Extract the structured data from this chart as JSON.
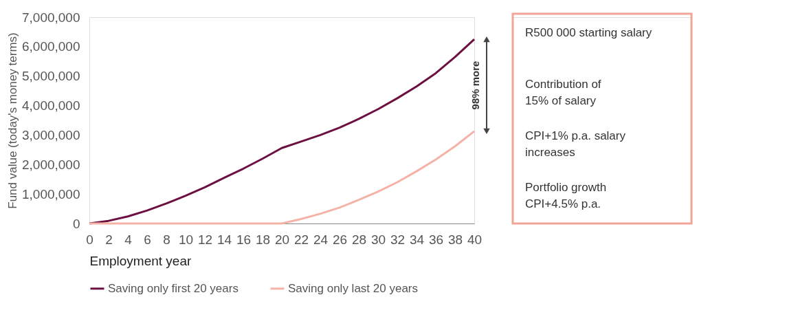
{
  "chart_data": {
    "type": "line",
    "xlabel": "Employment year",
    "ylabel": "Fund value (today's money terms)",
    "xlim": [
      0,
      40
    ],
    "xticks": [
      0,
      2,
      4,
      6,
      8,
      10,
      12,
      14,
      16,
      18,
      20,
      22,
      24,
      26,
      28,
      30,
      32,
      34,
      36,
      38,
      40
    ],
    "ylim": [
      0,
      7000000
    ],
    "yticks": [
      {
        "value": 0,
        "label": "0"
      },
      {
        "value": 1000000,
        "label": "1,000,000"
      },
      {
        "value": 2000000,
        "label": "2,000,000"
      },
      {
        "value": 3000000,
        "label": "3,000,000"
      },
      {
        "value": 4000000,
        "label": "4,000,000"
      },
      {
        "value": 5000000,
        "label": "5,000,000"
      },
      {
        "value": 6000000,
        "label": "6,000,000"
      },
      {
        "value": 7000000,
        "label": "7,000,000"
      }
    ],
    "grid": false,
    "legend": "bottom",
    "marker": "none",
    "line_style": "solid",
    "series": [
      {
        "name": "Saving only first 20 years",
        "color": "#6b1040",
        "x": [
          0,
          2,
          4,
          6,
          8,
          10,
          12,
          14,
          16,
          18,
          20,
          22,
          24,
          26,
          28,
          30,
          32,
          34,
          36,
          38,
          40
        ],
        "values": [
          0,
          90000,
          240000,
          440000,
          680000,
          940000,
          1230000,
          1550000,
          1860000,
          2200000,
          2560000,
          2780000,
          3000000,
          3250000,
          3550000,
          3880000,
          4250000,
          4650000,
          5100000,
          5650000,
          6250000
        ]
      },
      {
        "name": "Saving only last 20 years",
        "color": "#f4b3a6",
        "x": [
          0,
          20,
          22,
          24,
          26,
          28,
          30,
          32,
          34,
          36,
          38,
          40
        ],
        "values": [
          0,
          0,
          150000,
          330000,
          540000,
          800000,
          1080000,
          1400000,
          1770000,
          2170000,
          2620000,
          3130000
        ]
      }
    ],
    "annotations": [
      "98% more",
      "R500 000 starting salary",
      "Contribution of\n15% of salary",
      "CPI+1% p.a. salary\nincreases",
      "Portfolio growth\nCPI+4.5% p.a."
    ]
  }
}
